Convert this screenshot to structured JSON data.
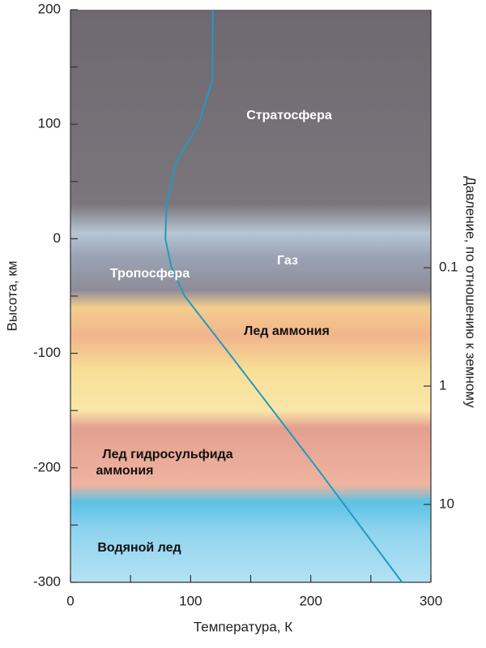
{
  "chart_data": {
    "type": "line",
    "xlabel": "Температура, К",
    "ylabel": "Высота, км",
    "y2label": "Давление, по отношению к земному",
    "x": [
      118.6,
      118,
      106.5,
      88,
      80,
      79,
      84,
      95,
      132,
      205,
      276
    ],
    "series": [
      {
        "name": "Температура",
        "color": "#1f9bbf",
        "values": [
          200,
          137.7,
          100,
          67,
          31.5,
          0,
          -25,
          -50,
          -100,
          -200,
          -300
        ]
      }
    ],
    "xlim": [
      0,
      300
    ],
    "xticks": [
      0,
      100,
      200,
      300
    ],
    "xminor_ticks": [
      50,
      150,
      250
    ],
    "ylim": [
      -300,
      200
    ],
    "yticks": [
      -300,
      -200,
      -100,
      0,
      100,
      200
    ],
    "yminor_ticks": [
      -250,
      -150,
      -50,
      50,
      150
    ],
    "y2_log": true,
    "y2lim": [
      45.5,
      0.00066
    ],
    "y2ticks": [
      0.1,
      1,
      10
    ],
    "annotations": [
      "Стратосфера",
      "Газ",
      "Тропосфера",
      "Лед аммония",
      "Лед гидросульфида",
      "аммония",
      "Водяной лед"
    ]
  }
}
